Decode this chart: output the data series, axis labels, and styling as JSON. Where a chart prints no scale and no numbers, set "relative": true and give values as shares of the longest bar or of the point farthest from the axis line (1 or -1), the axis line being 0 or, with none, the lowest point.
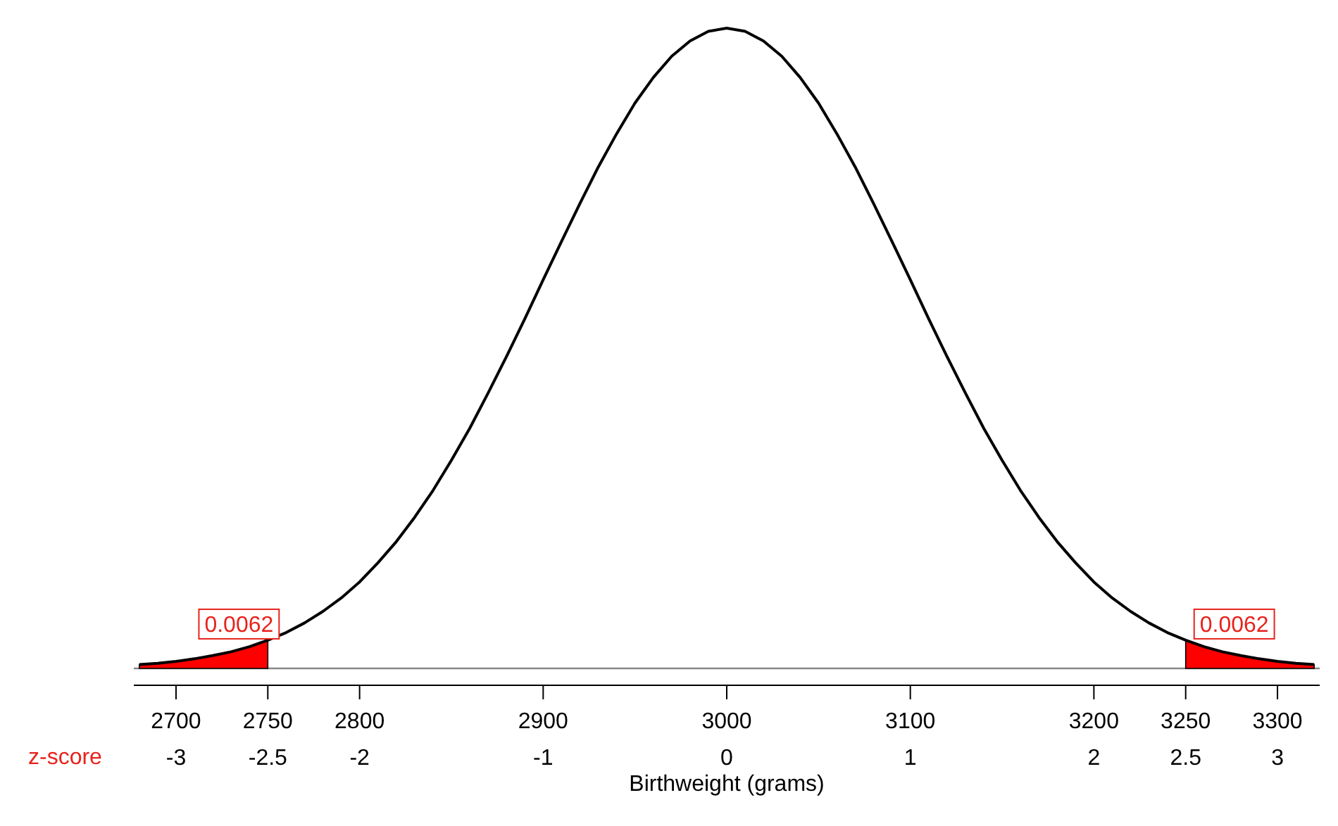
{
  "chart_data": {
    "type": "line",
    "relative": true,
    "xlabel": "Birthweight (grams)",
    "x2label": "z-score",
    "xlim": [
      2677,
      3323
    ],
    "xticks": [
      2700,
      2750,
      2800,
      2900,
      3000,
      3100,
      3200,
      3250,
      3300
    ],
    "x2lim": [
      -3.23,
      3.23
    ],
    "x2ticks": [
      -3,
      -2.5,
      -2,
      -1,
      0,
      1,
      2,
      2.5,
      3
    ],
    "grid": false,
    "series": [
      {
        "type": "line",
        "color": "#000000",
        "x": [
          2680,
          2690,
          2700,
          2710,
          2720,
          2730,
          2740,
          2750,
          2760,
          2770,
          2780,
          2790,
          2800,
          2810,
          2820,
          2830,
          2840,
          2850,
          2860,
          2870,
          2880,
          2890,
          2900,
          2910,
          2920,
          2930,
          2940,
          2950,
          2960,
          2970,
          2980,
          2990,
          3000,
          3010,
          3020,
          3030,
          3040,
          3050,
          3060,
          3070,
          3080,
          3090,
          3100,
          3110,
          3120,
          3130,
          3140,
          3150,
          3160,
          3170,
          3180,
          3190,
          3200,
          3210,
          3220,
          3230,
          3240,
          3250,
          3260,
          3270,
          3280,
          3290,
          3300,
          3310,
          3320
        ],
        "values": [
          0.006,
          0.008,
          0.011,
          0.015,
          0.02,
          0.026,
          0.034,
          0.044,
          0.056,
          0.071,
          0.089,
          0.11,
          0.135,
          0.165,
          0.198,
          0.236,
          0.278,
          0.325,
          0.375,
          0.43,
          0.487,
          0.546,
          0.607,
          0.667,
          0.726,
          0.783,
          0.835,
          0.883,
          0.923,
          0.956,
          0.98,
          0.995,
          1,
          0.995,
          0.98,
          0.956,
          0.923,
          0.883,
          0.835,
          0.783,
          0.726,
          0.667,
          0.607,
          0.546,
          0.487,
          0.43,
          0.375,
          0.325,
          0.278,
          0.236,
          0.198,
          0.165,
          0.135,
          0.11,
          0.089,
          0.071,
          0.056,
          0.044,
          0.034,
          0.026,
          0.02,
          0.015,
          0.011,
          0.008,
          0.006
        ]
      },
      {
        "type": "area",
        "color": "#ff0000",
        "x": [
          2680,
          2690,
          2700,
          2710,
          2720,
          2730,
          2740,
          2750
        ],
        "values": [
          0.006,
          0.008,
          0.011,
          0.015,
          0.02,
          0.026,
          0.034,
          0.044
        ]
      },
      {
        "type": "area",
        "color": "#ff0000",
        "x": [
          3250,
          3260,
          3270,
          3280,
          3290,
          3300,
          3310,
          3320
        ],
        "values": [
          0.044,
          0.034,
          0.026,
          0.02,
          0.015,
          0.011,
          0.008,
          0.006
        ]
      }
    ],
    "annotations": [
      {
        "text": "0.0062",
        "x": 2750,
        "y": 0.044
      },
      {
        "text": "0.0062",
        "x": 3250,
        "y": 0.044
      }
    ]
  }
}
